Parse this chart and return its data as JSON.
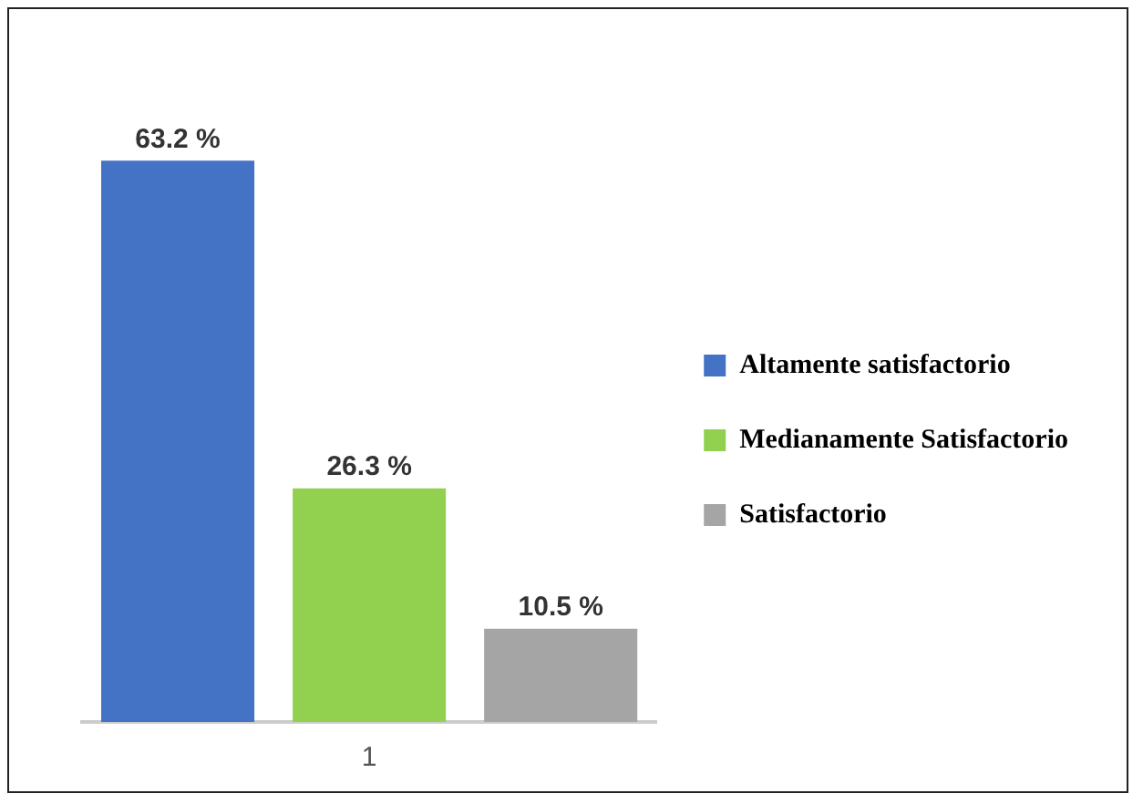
{
  "chart_data": {
    "type": "bar",
    "categories": [
      null,
      "1",
      null
    ],
    "stacked": true,
    "series": [
      {
        "name": "Altamente satisfactorio",
        "color": "#4472c4",
        "values": [
          63.2,
          null,
          null
        ],
        "value_labels": [
          "63.2 %",
          null,
          null
        ]
      },
      {
        "name": "Medianamente Satisfactorio",
        "color": "#92d050",
        "values": [
          null,
          26.3,
          null
        ],
        "value_labels": [
          null,
          "26.3 %",
          null
        ]
      },
      {
        "name": "Satisfactorio",
        "color": "#a5a5a5",
        "values": [
          null,
          null,
          10.5
        ],
        "value_labels": [
          null,
          null,
          "10.5 %"
        ]
      }
    ],
    "grid": false,
    "legend": "right"
  }
}
